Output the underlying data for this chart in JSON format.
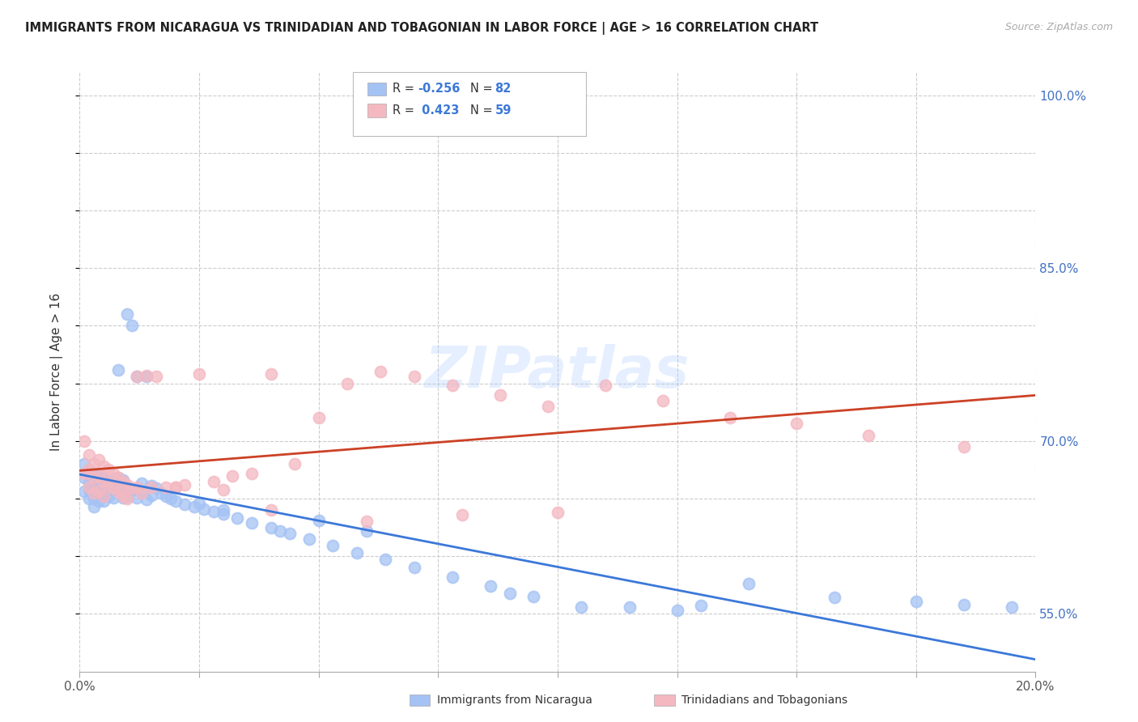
{
  "title": "IMMIGRANTS FROM NICARAGUA VS TRINIDADIAN AND TOBAGONIAN IN LABOR FORCE | AGE > 16 CORRELATION CHART",
  "source": "Source: ZipAtlas.com",
  "ylabel": "In Labor Force | Age > 16",
  "xlim": [
    0.0,
    0.2
  ],
  "ylim": [
    0.5,
    1.02
  ],
  "yticks": [
    0.55,
    0.6,
    0.65,
    0.7,
    0.75,
    0.8,
    0.85,
    0.9,
    0.95,
    1.0
  ],
  "ytick_labels": [
    "55.0%",
    "",
    "",
    "70.0%",
    "",
    "",
    "85.0%",
    "",
    "",
    "100.0%"
  ],
  "xtick_positions": [
    0.0,
    0.025,
    0.05,
    0.075,
    0.1,
    0.125,
    0.15,
    0.175,
    0.2
  ],
  "xtick_labels": [
    "0.0%",
    "",
    "",
    "",
    "",
    "",
    "",
    "",
    "20.0%"
  ],
  "nicaragua_R": -0.256,
  "nicaragua_N": 82,
  "trinidad_R": 0.423,
  "trinidad_N": 59,
  "nicaragua_color": "#a4c2f4",
  "trinidad_color": "#f4b8c1",
  "nicaragua_line_color": "#3c78d8",
  "trinidad_line_color": "#cc4125",
  "watermark": "ZIPatlas",
  "nicaragua_x": [
    0.001,
    0.001,
    0.001,
    0.002,
    0.002,
    0.002,
    0.002,
    0.003,
    0.003,
    0.003,
    0.003,
    0.003,
    0.004,
    0.004,
    0.004,
    0.004,
    0.005,
    0.005,
    0.005,
    0.005,
    0.006,
    0.006,
    0.006,
    0.007,
    0.007,
    0.007,
    0.008,
    0.008,
    0.008,
    0.009,
    0.009,
    0.009,
    0.01,
    0.01,
    0.01,
    0.011,
    0.011,
    0.012,
    0.012,
    0.013,
    0.013,
    0.014,
    0.014,
    0.015,
    0.015,
    0.016,
    0.017,
    0.018,
    0.019,
    0.02,
    0.022,
    0.024,
    0.026,
    0.028,
    0.03,
    0.033,
    0.036,
    0.04,
    0.044,
    0.048,
    0.053,
    0.058,
    0.064,
    0.07,
    0.078,
    0.086,
    0.095,
    0.105,
    0.115,
    0.125,
    0.14,
    0.158,
    0.175,
    0.185,
    0.05,
    0.06,
    0.025,
    0.03,
    0.09,
    0.042,
    0.13,
    0.195
  ],
  "nicaragua_y": [
    0.68,
    0.668,
    0.656,
    0.675,
    0.664,
    0.658,
    0.65,
    0.672,
    0.665,
    0.658,
    0.65,
    0.643,
    0.67,
    0.663,
    0.655,
    0.648,
    0.668,
    0.661,
    0.654,
    0.648,
    0.666,
    0.659,
    0.652,
    0.664,
    0.658,
    0.651,
    0.762,
    0.668,
    0.66,
    0.666,
    0.658,
    0.651,
    0.81,
    0.66,
    0.652,
    0.8,
    0.658,
    0.756,
    0.651,
    0.663,
    0.656,
    0.756,
    0.649,
    0.661,
    0.653,
    0.659,
    0.655,
    0.652,
    0.65,
    0.648,
    0.645,
    0.643,
    0.641,
    0.639,
    0.637,
    0.633,
    0.629,
    0.625,
    0.62,
    0.615,
    0.609,
    0.603,
    0.597,
    0.59,
    0.582,
    0.574,
    0.565,
    0.556,
    0.556,
    0.553,
    0.576,
    0.564,
    0.561,
    0.558,
    0.631,
    0.622,
    0.646,
    0.64,
    0.568,
    0.622,
    0.557,
    0.556
  ],
  "trinidad_x": [
    0.001,
    0.001,
    0.002,
    0.002,
    0.002,
    0.003,
    0.003,
    0.003,
    0.004,
    0.004,
    0.004,
    0.005,
    0.005,
    0.005,
    0.006,
    0.006,
    0.007,
    0.007,
    0.008,
    0.008,
    0.009,
    0.009,
    0.01,
    0.01,
    0.011,
    0.012,
    0.013,
    0.014,
    0.015,
    0.016,
    0.018,
    0.02,
    0.022,
    0.025,
    0.028,
    0.032,
    0.036,
    0.04,
    0.045,
    0.05,
    0.056,
    0.063,
    0.07,
    0.078,
    0.088,
    0.098,
    0.11,
    0.122,
    0.136,
    0.15,
    0.165,
    0.012,
    0.02,
    0.03,
    0.04,
    0.06,
    0.08,
    0.1,
    0.185
  ],
  "trinidad_y": [
    0.7,
    0.672,
    0.688,
    0.675,
    0.66,
    0.68,
    0.668,
    0.655,
    0.684,
    0.67,
    0.657,
    0.678,
    0.665,
    0.652,
    0.675,
    0.662,
    0.672,
    0.659,
    0.668,
    0.656,
    0.665,
    0.652,
    0.662,
    0.65,
    0.659,
    0.756,
    0.655,
    0.757,
    0.66,
    0.756,
    0.66,
    0.66,
    0.662,
    0.758,
    0.665,
    0.67,
    0.672,
    0.758,
    0.68,
    0.72,
    0.75,
    0.76,
    0.756,
    0.748,
    0.74,
    0.73,
    0.748,
    0.735,
    0.72,
    0.715,
    0.705,
    0.66,
    0.66,
    0.658,
    0.64,
    0.63,
    0.636,
    0.638,
    0.695
  ]
}
